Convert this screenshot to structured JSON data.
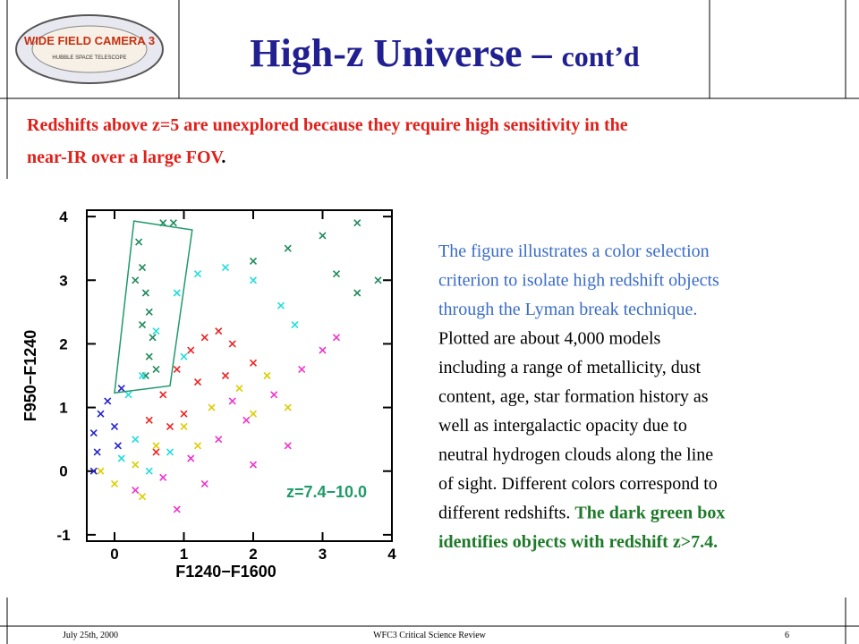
{
  "header": {
    "title": [
      {
        "text": "High-z Universe – ",
        "size": 44
      },
      {
        "text": "cont’d",
        "size": 32
      }
    ],
    "color": "#202090"
  },
  "logo": {
    "main": "WIDE FIELD CAMERA 3",
    "sub": "HUBBLE SPACE TELESCOPE"
  },
  "intro": [
    [
      {
        "text": "Redshifts above z=5 are unexplored because they require high sensitivity in the",
        "color": "#e0201a"
      }
    ],
    [
      {
        "text": "near-IR over a large FOV",
        "color": "#e0201a"
      },
      {
        "text": ".",
        "color": "#000000"
      }
    ]
  ],
  "paragraph": [
    [
      {
        "text": "The figure illustrates a color selection",
        "color": "#3a6cc8",
        "bold": false
      }
    ],
    [
      {
        "text": "criterion to isolate high redshift objects",
        "color": "#3a6cc8",
        "bold": false
      }
    ],
    [
      {
        "text": "through the Lyman break technique.",
        "color": "#3a6cc8",
        "bold": false
      }
    ],
    [
      {
        "text": "Plotted are about 4,000 models",
        "color": "#000000",
        "bold": false
      }
    ],
    [
      {
        "text": "including a range of metallicity, dust",
        "color": "#000000",
        "bold": false
      }
    ],
    [
      {
        "text": "content, age, star formation history as",
        "color": "#000000",
        "bold": false
      }
    ],
    [
      {
        "text": "well as intergalactic opacity due to",
        "color": "#000000",
        "bold": false
      }
    ],
    [
      {
        "text": "neutral hydrogen clouds along the line",
        "color": "#000000",
        "bold": false
      }
    ],
    [
      {
        "text": "of sight. Different colors correspond to",
        "color": "#000000",
        "bold": false
      }
    ],
    [
      {
        "text": "different redshifts. ",
        "color": "#000000",
        "bold": false
      },
      {
        "text": "The dark green box",
        "color": "#1e7a2a",
        "bold": true
      }
    ],
    [
      {
        "text": "identifies objects with redshift z>7.4.",
        "color": "#1e7a2a",
        "bold": true
      }
    ]
  ],
  "footer": {
    "date": "July 25th, 2000",
    "center": "WFC3 Critical Science Review",
    "page": "6"
  },
  "chart_data": {
    "type": "scatter",
    "x_label": "F1240−F1600",
    "y_label": "F950−F1240",
    "annotation": "z=7.4−10.0",
    "annotation_color": "#1f9a6a",
    "xlim": [
      -0.4,
      4
    ],
    "ylim": [
      -1.1,
      4.1
    ],
    "xticks": [
      0,
      1,
      2,
      3,
      4
    ],
    "yticks": [
      -1,
      0,
      1,
      2,
      3,
      4
    ],
    "box": {
      "color": "#1f9a6a",
      "x": [
        0.28,
        0,
        0.8,
        1.12
      ],
      "y": [
        3.93,
        1.23,
        1.34,
        3.79
      ]
    },
    "series": [
      {
        "color": "#1f8a5a",
        "x": [
          0.35,
          0.4,
          0.3,
          0.45,
          0.5,
          0.4,
          0.55,
          0.5,
          0.6,
          0.45,
          0.7,
          0.85,
          2.0,
          2.5,
          3.0,
          3.5,
          3.8,
          3.2,
          3.5
        ],
        "y": [
          3.6,
          3.2,
          3.0,
          2.8,
          2.5,
          2.3,
          2.1,
          1.8,
          1.6,
          1.5,
          3.9,
          3.9,
          3.3,
          3.5,
          3.7,
          3.9,
          3.0,
          3.1,
          2.8
        ]
      },
      {
        "color": "#22dddd",
        "x": [
          0.2,
          0.4,
          0.6,
          0.9,
          1.2,
          1.6,
          2.0,
          2.4,
          0.3,
          0.1,
          0.5,
          0.8,
          2.6,
          1.0
        ],
        "y": [
          1.2,
          1.5,
          2.2,
          2.8,
          3.1,
          3.2,
          3.0,
          2.6,
          0.5,
          0.2,
          0.0,
          0.3,
          2.3,
          1.8
        ]
      },
      {
        "color": "#2222cc",
        "x": [
          -0.3,
          -0.2,
          -0.1,
          0.0,
          -0.25,
          0.1,
          -0.3,
          0.05
        ],
        "y": [
          0.6,
          0.9,
          1.1,
          0.7,
          0.3,
          1.3,
          0.0,
          0.4
        ]
      },
      {
        "color": "#ee2222",
        "x": [
          0.5,
          0.7,
          0.9,
          1.1,
          1.3,
          1.5,
          1.7,
          1.2,
          0.8,
          1.6,
          2.0,
          1.0,
          0.6
        ],
        "y": [
          0.8,
          1.2,
          1.6,
          1.9,
          2.1,
          2.2,
          2.0,
          1.4,
          0.7,
          1.5,
          1.7,
          0.9,
          0.3
        ]
      },
      {
        "color": "#ee33cc",
        "x": [
          0.3,
          0.7,
          1.1,
          1.5,
          1.9,
          2.3,
          2.7,
          3.0,
          1.3,
          2.0,
          0.9,
          2.5,
          3.2,
          1.7
        ],
        "y": [
          -0.3,
          -0.1,
          0.2,
          0.5,
          0.8,
          1.2,
          1.6,
          1.9,
          -0.2,
          0.1,
          -0.6,
          0.4,
          2.1,
          1.1
        ]
      },
      {
        "color": "#ddcc00",
        "x": [
          -0.2,
          0.0,
          0.3,
          0.6,
          1.0,
          1.4,
          1.8,
          2.2,
          2.0,
          1.2,
          0.4,
          2.5
        ],
        "y": [
          0.0,
          -0.2,
          0.1,
          0.4,
          0.7,
          1.0,
          1.3,
          1.5,
          0.9,
          0.4,
          -0.4,
          1.0
        ]
      }
    ]
  }
}
